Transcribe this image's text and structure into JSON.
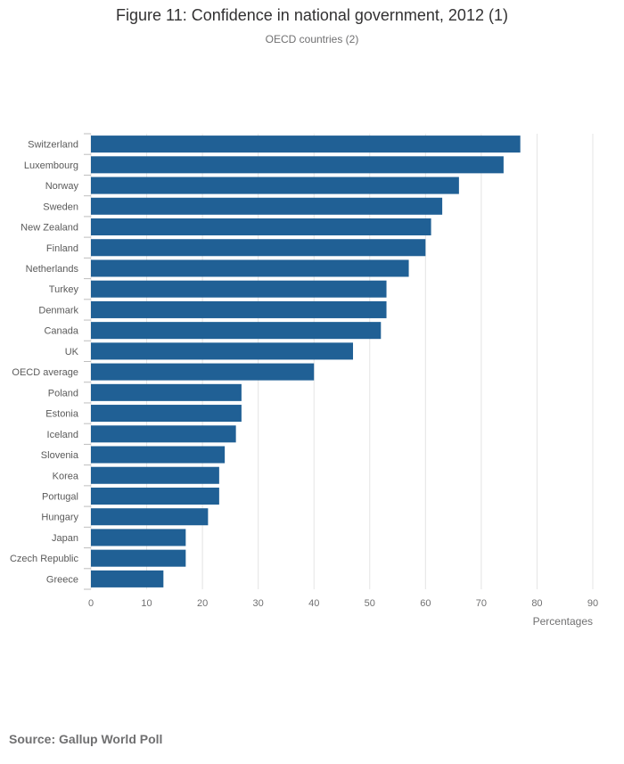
{
  "title": "Figure 11: Confidence in national government, 2012 (1)",
  "subtitle": "OECD countries (2)",
  "source": "Source: Gallup World Poll",
  "chart_data": {
    "type": "bar",
    "orientation": "horizontal",
    "title": "Figure 11: Confidence in national government, 2012 (1)",
    "subtitle": "OECD countries (2)",
    "xlabel": "Percentages",
    "ylabel": "",
    "xlim": [
      0,
      90
    ],
    "xticks": [
      0,
      10,
      20,
      30,
      40,
      50,
      60,
      70,
      80,
      90
    ],
    "grid": "vertical",
    "legend": "none",
    "bar_color": "#206095",
    "categories": [
      "Switzerland",
      "Luxembourg",
      "Norway",
      "Sweden",
      "New Zealand",
      "Finland",
      "Netherlands",
      "Turkey",
      "Denmark",
      "Canada",
      "UK",
      "OECD average",
      "Poland",
      "Estonia",
      "Iceland",
      "Slovenia",
      "Korea",
      "Portugal",
      "Hungary",
      "Japan",
      "Czech Republic",
      "Greece"
    ],
    "values": [
      77,
      74,
      66,
      63,
      61,
      60,
      57,
      53,
      53,
      52,
      47,
      40,
      27,
      27,
      26,
      24,
      23,
      23,
      21,
      17,
      17,
      13
    ]
  }
}
